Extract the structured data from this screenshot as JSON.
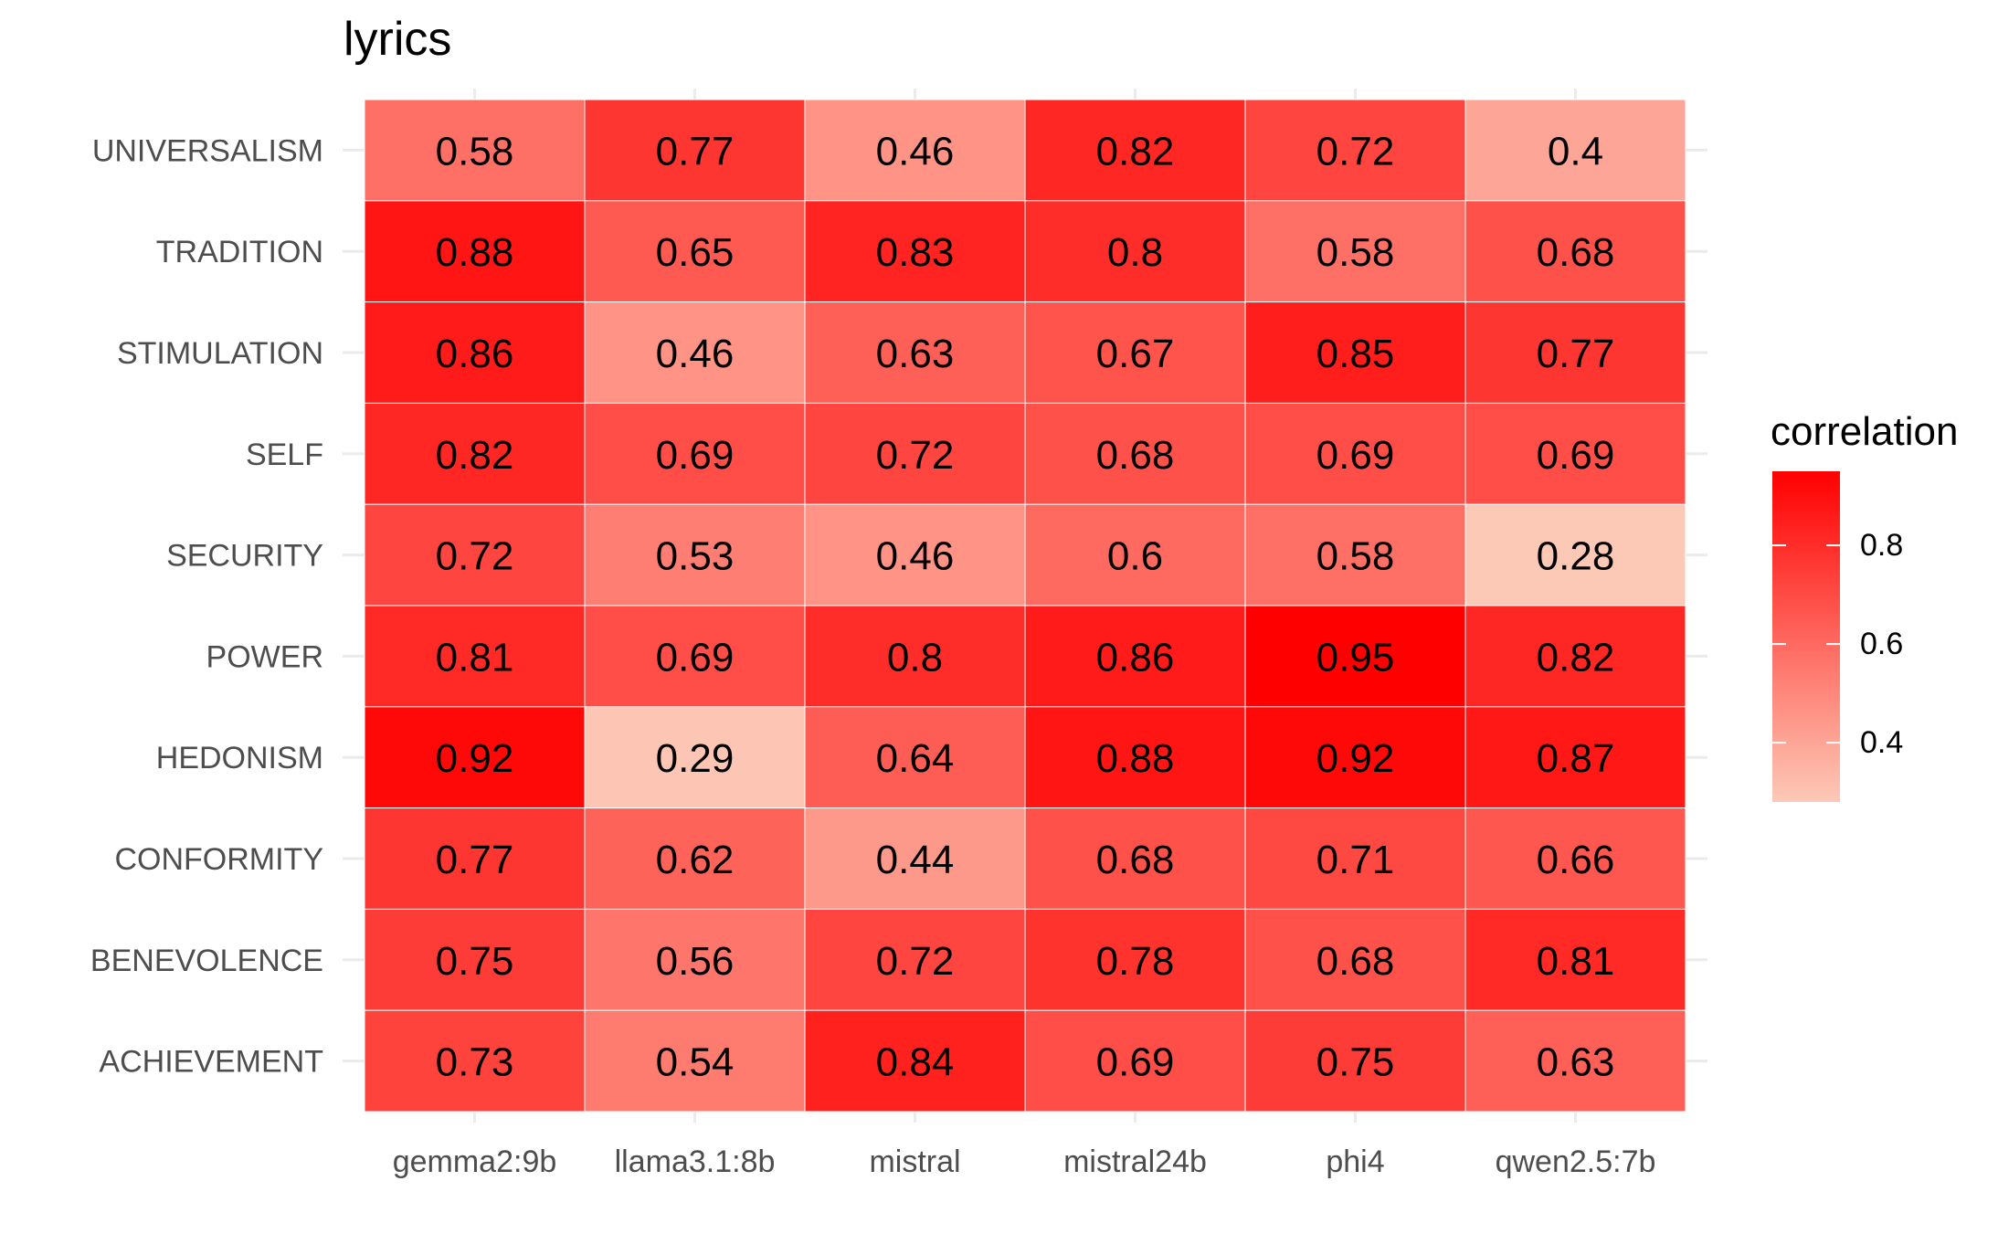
{
  "chart_data": {
    "type": "heatmap",
    "title": "lyrics",
    "xlabel": "",
    "ylabel": "",
    "x_categories": [
      "gemma2:9b",
      "llama3.1:8b",
      "mistral",
      "mistral24b",
      "phi4",
      "qwen2.5:7b"
    ],
    "y_categories": [
      "UNIVERSALISM",
      "TRADITION",
      "STIMULATION",
      "SELF",
      "SECURITY",
      "POWER",
      "HEDONISM",
      "CONFORMITY",
      "BENEVOLENCE",
      "ACHIEVEMENT"
    ],
    "values": [
      [
        "0.58",
        "0.77",
        "0.46",
        "0.82",
        "0.72",
        "0.4"
      ],
      [
        "0.88",
        "0.65",
        "0.83",
        "0.8",
        "0.58",
        "0.68"
      ],
      [
        "0.86",
        "0.46",
        "0.63",
        "0.67",
        "0.85",
        "0.77"
      ],
      [
        "0.82",
        "0.69",
        "0.72",
        "0.68",
        "0.69",
        "0.69"
      ],
      [
        "0.72",
        "0.53",
        "0.46",
        "0.6",
        "0.58",
        "0.28"
      ],
      [
        "0.81",
        "0.69",
        "0.8",
        "0.86",
        "0.95",
        "0.82"
      ],
      [
        "0.92",
        "0.29",
        "0.64",
        "0.88",
        "0.92",
        "0.87"
      ],
      [
        "0.77",
        "0.62",
        "0.44",
        "0.68",
        "0.71",
        "0.66"
      ],
      [
        "0.75",
        "0.56",
        "0.72",
        "0.78",
        "0.68",
        "0.81"
      ],
      [
        "0.73",
        "0.54",
        "0.84",
        "0.69",
        "0.75",
        "0.63"
      ]
    ],
    "color_scale": {
      "low_color": "#fdc9b7",
      "high_color": "#ff0000",
      "min": 0.28,
      "max": 0.95
    },
    "legend": {
      "title": "correlation",
      "placement": "right",
      "ticks": [
        "0.8",
        "0.6",
        "0.4"
      ]
    },
    "grid": true,
    "panel_grid_color": "#ebebeb",
    "label_color": "#4d4d4d"
  }
}
